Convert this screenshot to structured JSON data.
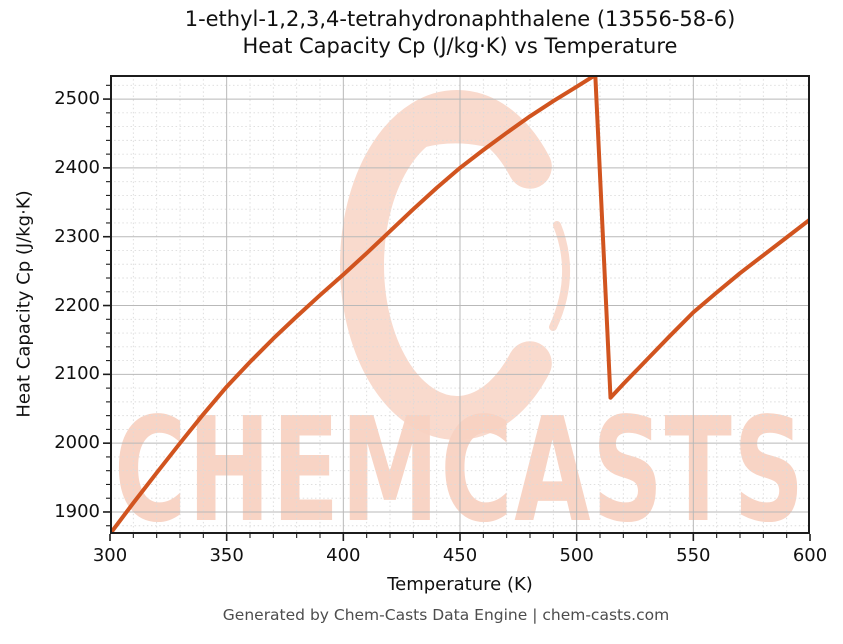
{
  "title": {
    "line1": "1-ethyl-1,2,3,4-tetrahydronaphthalene (13556-58-6)",
    "line2": "Heat Capacity Cp (J/kg·K) vs Temperature"
  },
  "footer": "Generated by Chem-Casts Data Engine | chem-casts.com",
  "watermark": {
    "text": "CHEMCASTS",
    "logo": "c-swoosh-logo",
    "text_color": "#f8d2c2",
    "logo_color": "#f9dacd"
  },
  "chart_data": {
    "type": "line",
    "title": "1-ethyl-1,2,3,4-tetrahydronaphthalene (13556-58-6) Heat Capacity Cp (J/kg·K) vs Temperature",
    "xlabel": "Temperature (K)",
    "ylabel": "Heat Capacity Cp (J/kg·K)",
    "xlim": [
      300,
      600
    ],
    "ylim": [
      1868,
      2535
    ],
    "xticks": [
      300,
      350,
      400,
      450,
      500,
      550,
      600
    ],
    "yticks": [
      1900,
      2000,
      2100,
      2200,
      2300,
      2400,
      2500
    ],
    "x_minor_step": 10,
    "y_minor_step": 20,
    "grid": true,
    "legend": false,
    "series": [
      {
        "name": "Heat Capacity Cp",
        "color": "#d1541f",
        "line_width": 4,
        "points": [
          [
            300,
            1868
          ],
          [
            310,
            1913
          ],
          [
            320,
            1957
          ],
          [
            330,
            2000
          ],
          [
            340,
            2042
          ],
          [
            350,
            2082
          ],
          [
            360,
            2118
          ],
          [
            370,
            2152
          ],
          [
            380,
            2184
          ],
          [
            390,
            2215
          ],
          [
            400,
            2245
          ],
          [
            410,
            2276
          ],
          [
            420,
            2308
          ],
          [
            430,
            2340
          ],
          [
            440,
            2371
          ],
          [
            450,
            2400
          ],
          [
            460,
            2426
          ],
          [
            470,
            2451
          ],
          [
            480,
            2475
          ],
          [
            490,
            2497
          ],
          [
            500,
            2518
          ],
          [
            508,
            2535
          ],
          [
            514.5,
            2066
          ],
          [
            520,
            2086
          ],
          [
            530,
            2121
          ],
          [
            540,
            2156
          ],
          [
            550,
            2190
          ],
          [
            560,
            2219
          ],
          [
            570,
            2247
          ],
          [
            580,
            2273
          ],
          [
            590,
            2299
          ],
          [
            600,
            2325
          ]
        ]
      }
    ]
  }
}
